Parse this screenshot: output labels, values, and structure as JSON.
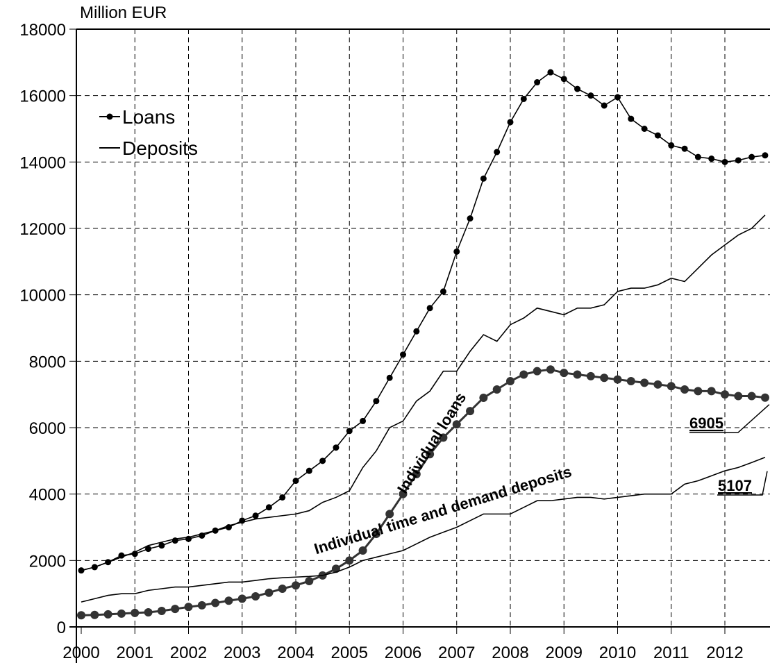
{
  "chart_data": {
    "type": "line",
    "y_axis_label": "Million EUR",
    "x": [
      2000,
      2000.25,
      2000.5,
      2000.75,
      2001,
      2001.25,
      2001.5,
      2001.75,
      2002,
      2002.25,
      2002.5,
      2002.75,
      2003,
      2003.25,
      2003.5,
      2003.75,
      2004,
      2004.25,
      2004.5,
      2004.75,
      2005,
      2005.25,
      2005.5,
      2005.75,
      2006,
      2006.25,
      2006.5,
      2006.75,
      2007,
      2007.25,
      2007.5,
      2007.75,
      2008,
      2008.25,
      2008.5,
      2008.75,
      2009,
      2009.25,
      2009.5,
      2009.75,
      2010,
      2010.25,
      2010.5,
      2010.75,
      2011,
      2011.25,
      2011.5,
      2011.75,
      2012,
      2012.25,
      2012.5,
      2012.75
    ],
    "xlim": [
      2000,
      2012.85
    ],
    "xticks": [
      2000,
      2001,
      2002,
      2003,
      2004,
      2005,
      2006,
      2007,
      2008,
      2009,
      2010,
      2011,
      2012
    ],
    "ylim": [
      0,
      18000
    ],
    "yticks": [
      0,
      2000,
      4000,
      6000,
      8000,
      10000,
      12000,
      14000,
      16000,
      18000
    ],
    "grid": true,
    "legend": "upper left",
    "series": [
      {
        "name": "Loans",
        "color": "#000000",
        "marker": "small",
        "in_legend": true,
        "values": [
          1700,
          1800,
          1950,
          2150,
          2200,
          2350,
          2450,
          2600,
          2650,
          2750,
          2900,
          3000,
          3200,
          3350,
          3600,
          3900,
          4400,
          4700,
          5000,
          5400,
          5900,
          6200,
          6800,
          7500,
          8200,
          8900,
          9600,
          10100,
          11300,
          12300,
          13500,
          14300,
          15200,
          15900,
          16400,
          16700,
          16500,
          16200,
          16000,
          15700,
          15950,
          15300,
          15000,
          14800,
          14500,
          14400,
          14150,
          14100,
          14000,
          14050,
          14150,
          14200
        ]
      },
      {
        "name": "Deposits",
        "color": "#000000",
        "marker": "none",
        "in_legend": true,
        "values": [
          1700,
          1800,
          1950,
          2100,
          2250,
          2450,
          2550,
          2650,
          2700,
          2800,
          2900,
          3050,
          3150,
          3250,
          3300,
          3350,
          3400,
          3500,
          3750,
          3900,
          4100,
          4800,
          5300,
          6000,
          6200,
          6800,
          7100,
          7700,
          7700,
          8300,
          8800,
          8600,
          9100,
          9300,
          9600,
          9500,
          9400,
          9600,
          9600,
          9700,
          10100,
          10200,
          10200,
          10300,
          10500,
          10400,
          10800,
          11200,
          11500,
          11800,
          12000,
          12400
        ]
      },
      {
        "name": "Individual loans",
        "color": "#333333",
        "marker": "large",
        "in_legend": false,
        "values": [
          350,
          360,
          380,
          400,
          420,
          440,
          480,
          540,
          600,
          650,
          720,
          790,
          850,
          920,
          1030,
          1150,
          1250,
          1380,
          1550,
          1750,
          2000,
          2300,
          2800,
          3400,
          4000,
          4600,
          5200,
          5700,
          6100,
          6500,
          6900,
          7150,
          7400,
          7600,
          7700,
          7750,
          7650,
          7600,
          7550,
          7500,
          7450,
          7400,
          7350,
          7300,
          7250,
          7150,
          7100,
          7100,
          7000,
          6950,
          6950,
          6905
        ]
      },
      {
        "name": "Individual time and demand deposits",
        "color": "#000000",
        "marker": "none",
        "in_legend": false,
        "values": [
          750,
          850,
          950,
          1000,
          1000,
          1100,
          1150,
          1200,
          1200,
          1250,
          1300,
          1350,
          1350,
          1400,
          1450,
          1480,
          1500,
          1520,
          1550,
          1650,
          1800,
          2000,
          2100,
          2200,
          2300,
          2500,
          2700,
          2850,
          3000,
          3200,
          3400,
          3400,
          3400,
          3600,
          3800,
          3800,
          3850,
          3900,
          3900,
          3850,
          3900,
          3950,
          4000,
          4000,
          4000,
          4300,
          4400,
          4550,
          4700,
          4800,
          4950,
          5107
        ]
      }
    ]
  }
}
